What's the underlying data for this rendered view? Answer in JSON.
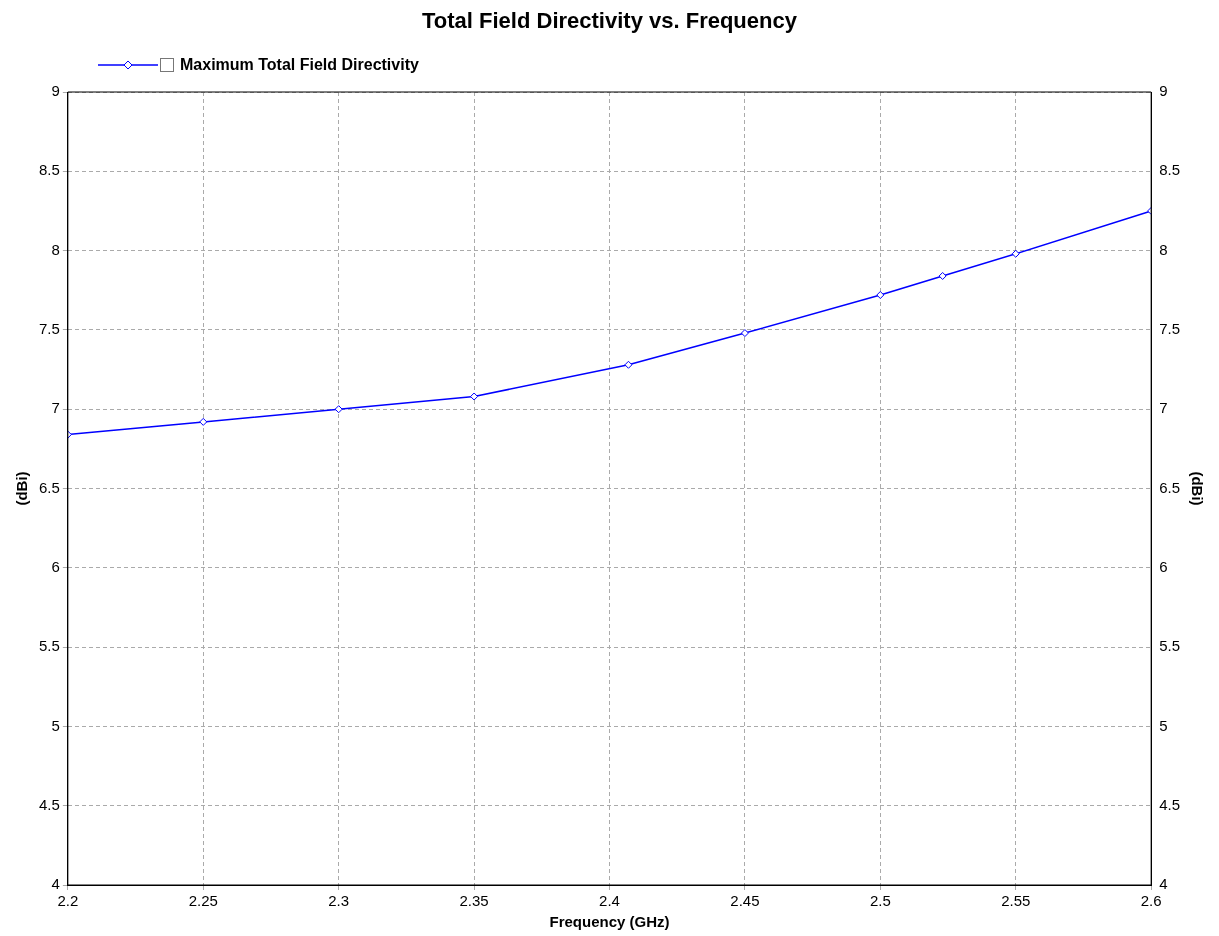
{
  "chart_data": {
    "type": "line",
    "title": "Total Field Directivity vs. Frequency",
    "xlabel": "Frequency (GHz)",
    "ylabel": "(dBi)",
    "y2label": "(dBi)",
    "x": [
      2.2,
      2.25,
      2.3,
      2.35,
      2.407,
      2.45,
      2.5,
      2.523,
      2.55,
      2.6
    ],
    "series": [
      {
        "name": "Maximum Total Field Directivity",
        "color": "#0000ff",
        "values": [
          6.84,
          6.92,
          7.0,
          7.08,
          7.28,
          7.48,
          7.72,
          7.84,
          7.98,
          8.25
        ]
      }
    ],
    "xlim": [
      2.2,
      2.6
    ],
    "xticks": [
      2.2,
      2.25,
      2.3,
      2.35,
      2.4,
      2.45,
      2.5,
      2.55,
      2.6
    ],
    "ylim": [
      4,
      9
    ],
    "yticks": [
      4,
      4.5,
      5,
      5.5,
      6,
      6.5,
      7,
      7.5,
      8,
      8.5,
      9
    ],
    "y2lim": [
      4,
      9
    ],
    "y2ticks": [
      4,
      4.5,
      5,
      5.5,
      6,
      6.5,
      7,
      7.5,
      8,
      8.5,
      9
    ],
    "grid": true,
    "legend": "top left",
    "marker": "diamond",
    "line_style": "solid"
  }
}
